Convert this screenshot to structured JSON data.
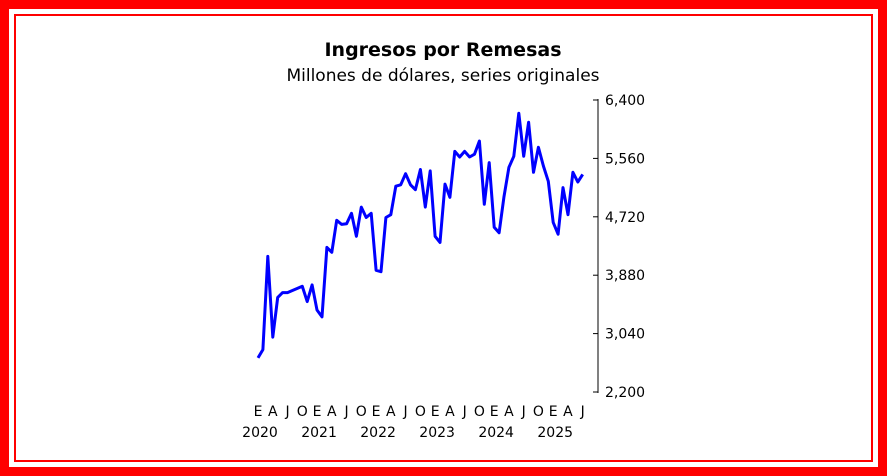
{
  "chart_data": {
    "type": "line",
    "title": "Ingresos por Remesas",
    "subtitle": "Millones de dólares, series originales",
    "xlabel": "",
    "ylabel": "",
    "ylim": [
      2200,
      6400
    ],
    "y_ticks": [
      "6,400",
      "5,560",
      "4,720",
      "3,880",
      "3,040",
      "2,200"
    ],
    "y_tick_values": [
      6400,
      5560,
      4720,
      3880,
      3040,
      2200
    ],
    "x_start": "2020-01",
    "x_frequency": "monthly",
    "x_month_labels": [
      {
        "month": 0,
        "label": "E"
      },
      {
        "month": 3,
        "label": "A"
      },
      {
        "month": 6,
        "label": "J"
      },
      {
        "month": 9,
        "label": "O"
      },
      {
        "month": 12,
        "label": "E"
      },
      {
        "month": 15,
        "label": "A"
      },
      {
        "month": 18,
        "label": "J"
      },
      {
        "month": 21,
        "label": "O"
      },
      {
        "month": 24,
        "label": "E"
      },
      {
        "month": 27,
        "label": "A"
      },
      {
        "month": 30,
        "label": "J"
      },
      {
        "month": 33,
        "label": "O"
      },
      {
        "month": 36,
        "label": "E"
      },
      {
        "month": 39,
        "label": "A"
      },
      {
        "month": 42,
        "label": "J"
      },
      {
        "month": 45,
        "label": "O"
      },
      {
        "month": 48,
        "label": "E"
      },
      {
        "month": 51,
        "label": "A"
      },
      {
        "month": 54,
        "label": "J"
      },
      {
        "month": 57,
        "label": "O"
      },
      {
        "month": 60,
        "label": "E"
      },
      {
        "month": 63,
        "label": "A"
      },
      {
        "month": 66,
        "label": "J"
      }
    ],
    "x_year_labels": [
      {
        "month": 0,
        "label": "2020"
      },
      {
        "month": 12,
        "label": "2021"
      },
      {
        "month": 24,
        "label": "2022"
      },
      {
        "month": 36,
        "label": "2023"
      },
      {
        "month": 48,
        "label": "2024"
      },
      {
        "month": 60,
        "label": "2025"
      }
    ],
    "series": [
      {
        "color": "#0000ff",
        "values": [
          2690,
          2810,
          4150,
          2990,
          3560,
          3630,
          3630,
          3660,
          3690,
          3720,
          3500,
          3740,
          3380,
          3280,
          4280,
          4210,
          4670,
          4610,
          4620,
          4770,
          4440,
          4860,
          4710,
          4770,
          3950,
          3930,
          4710,
          4750,
          5160,
          5180,
          5340,
          5180,
          5110,
          5400,
          4860,
          5380,
          4440,
          4350,
          5190,
          5000,
          5660,
          5580,
          5660,
          5580,
          5620,
          5810,
          4900,
          5500,
          4570,
          4490,
          5010,
          5430,
          5590,
          6210,
          5590,
          6080,
          5360,
          5720,
          5450,
          5230,
          4640,
          4470,
          5140,
          4750,
          5360,
          5220,
          5330
        ]
      }
    ],
    "grid": false,
    "legend": "none"
  }
}
